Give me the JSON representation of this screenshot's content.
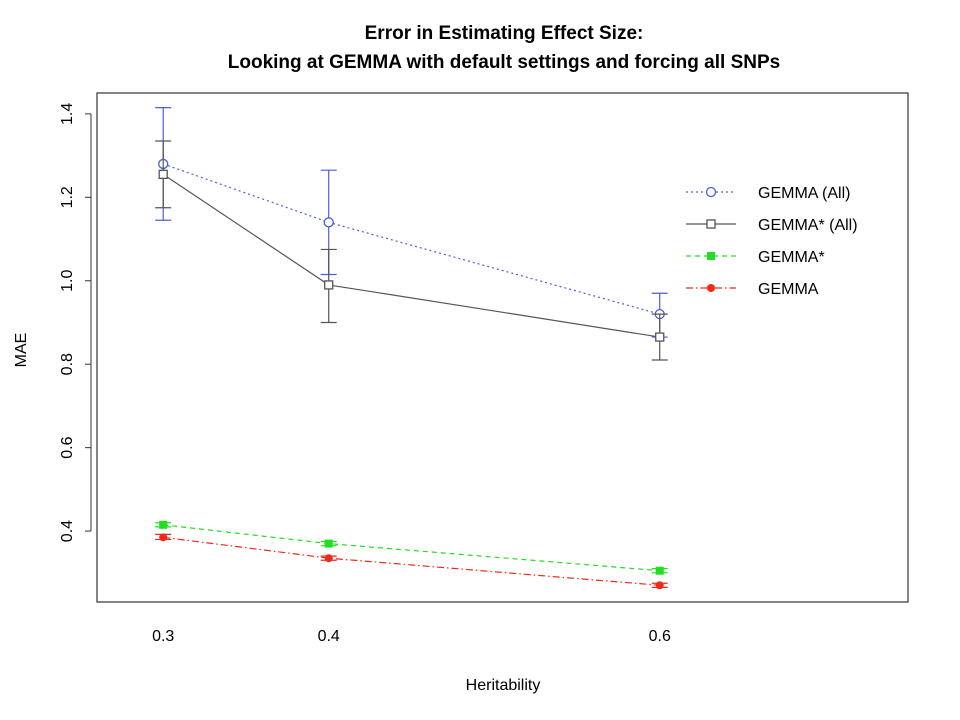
{
  "chart_data": {
    "type": "line",
    "title": "Error in Estimating Effect Size:",
    "subtitle": "Looking at GEMMA with default settings and forcing all SNPs",
    "xlabel": "Heritability",
    "ylabel": "MAE",
    "x": [
      0.3,
      0.4,
      0.6
    ],
    "xticks": [
      "0.3",
      "0.4",
      "0.6"
    ],
    "yticks": [
      0.4,
      0.6,
      0.8,
      1.0,
      1.2,
      1.4
    ],
    "ytick_labels": [
      "0.4",
      "0.6",
      "0.8",
      "1.0",
      "1.2",
      "1.4"
    ],
    "xlim": [
      0.26,
      0.75
    ],
    "ylim": [
      0.23,
      1.45
    ],
    "grid": false,
    "legend_position": "right",
    "series": [
      {
        "name": "GEMMA (All)",
        "values": [
          1.28,
          1.14,
          0.92
        ],
        "error_low": [
          1.145,
          1.015,
          0.865
        ],
        "error_high": [
          1.415,
          1.265,
          0.97
        ],
        "color": "#4b5fd6",
        "line_style": "dotted",
        "marker": "open-circle"
      },
      {
        "name": "GEMMA* (All)",
        "values": [
          1.255,
          0.99,
          0.865
        ],
        "error_low": [
          1.175,
          0.9,
          0.81
        ],
        "error_high": [
          1.335,
          1.075,
          0.92
        ],
        "color": "#555555",
        "line_style": "solid",
        "marker": "open-square"
      },
      {
        "name": "GEMMA*",
        "values": [
          0.415,
          0.37,
          0.305
        ],
        "error_low": [
          0.41,
          0.365,
          0.3
        ],
        "error_high": [
          0.42,
          0.375,
          0.31
        ],
        "color": "#22dd22",
        "line_style": "dashed",
        "marker": "filled-square"
      },
      {
        "name": "GEMMA",
        "values": [
          0.385,
          0.335,
          0.27
        ],
        "error_low": [
          0.38,
          0.33,
          0.265
        ],
        "error_high": [
          0.392,
          0.34,
          0.275
        ],
        "color": "#ee2a1a",
        "line_style": "dashdot",
        "marker": "filled-circle"
      }
    ]
  }
}
